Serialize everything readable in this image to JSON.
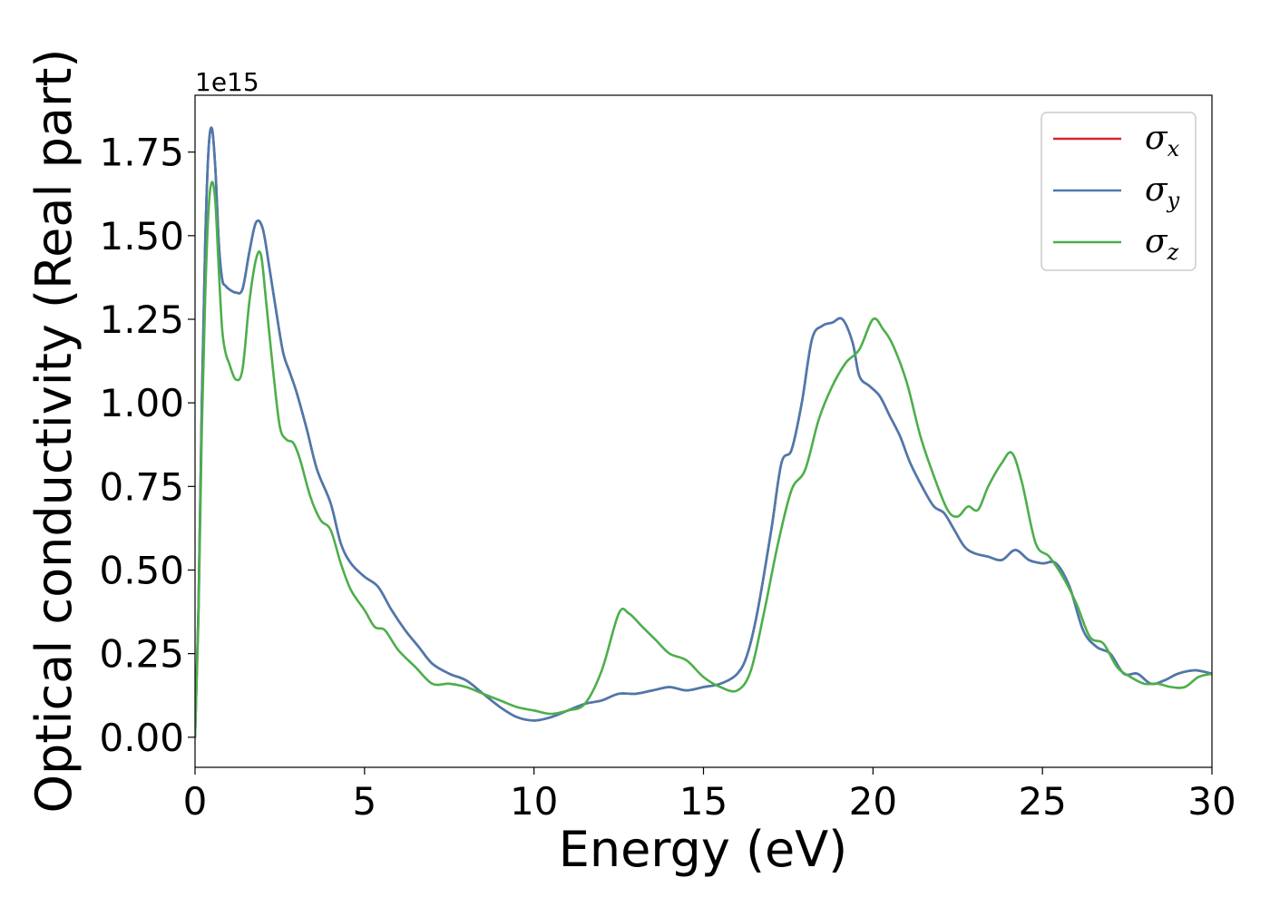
{
  "chart_data": {
    "type": "line",
    "title": "",
    "xlabel": "Energy (eV)",
    "ylabel": "Optical conductivity (Real part)",
    "y_offset_text": "1e15",
    "xlim": [
      0,
      30
    ],
    "ylim": [
      -0.09,
      1.92
    ],
    "x_ticks": [
      0,
      5,
      10,
      15,
      20,
      25,
      30
    ],
    "x_tick_labels": [
      "0",
      "5",
      "10",
      "15",
      "20",
      "25",
      "30"
    ],
    "y_ticks": [
      0,
      0.25,
      0.5,
      0.75,
      1.0,
      1.25,
      1.5,
      1.75
    ],
    "y_tick_labels": [
      "0.00",
      "0.25",
      "0.50",
      "0.75",
      "1.00",
      "1.25",
      "1.50",
      "1.75"
    ],
    "grid": false,
    "legend_position": "top-right",
    "series": [
      {
        "name": "σx",
        "legend_base": "σ",
        "legend_sub": "x",
        "color": "#d62728",
        "x": [
          0,
          0.1,
          0.2,
          0.3,
          0.4,
          0.5,
          0.6,
          0.7,
          0.8,
          0.9,
          1.0,
          1.2,
          1.4,
          1.6,
          1.8,
          2.0,
          2.2,
          2.4,
          2.6,
          2.8,
          3.0,
          3.3,
          3.6,
          4.0,
          4.3,
          4.6,
          5.0,
          5.4,
          5.8,
          6.2,
          6.6,
          7.0,
          7.5,
          8.0,
          8.5,
          9.0,
          9.5,
          10.0,
          10.5,
          11.0,
          11.5,
          12.0,
          12.5,
          13.0,
          13.5,
          14.0,
          14.5,
          15.0,
          15.5,
          16.0,
          16.3,
          16.6,
          17.0,
          17.3,
          17.6,
          17.9,
          18.2,
          18.5,
          18.8,
          19.1,
          19.4,
          19.6,
          19.9,
          20.2,
          20.5,
          20.8,
          21.1,
          21.5,
          21.8,
          22.1,
          22.4,
          22.7,
          23.0,
          23.4,
          23.8,
          24.2,
          24.6,
          25.0,
          25.4,
          25.8,
          26.2,
          26.6,
          27.0,
          27.4,
          27.8,
          28.2,
          28.6,
          29.0,
          29.5,
          30.0
        ],
        "y": [
          0.0,
          0.38,
          1.0,
          1.48,
          1.76,
          1.82,
          1.7,
          1.48,
          1.37,
          1.35,
          1.34,
          1.33,
          1.34,
          1.45,
          1.54,
          1.52,
          1.4,
          1.27,
          1.15,
          1.09,
          1.03,
          0.92,
          0.8,
          0.7,
          0.58,
          0.52,
          0.48,
          0.45,
          0.38,
          0.32,
          0.27,
          0.22,
          0.19,
          0.17,
          0.13,
          0.09,
          0.06,
          0.05,
          0.06,
          0.08,
          0.1,
          0.11,
          0.13,
          0.13,
          0.14,
          0.15,
          0.14,
          0.15,
          0.16,
          0.19,
          0.25,
          0.38,
          0.62,
          0.82,
          0.86,
          1.0,
          1.19,
          1.23,
          1.24,
          1.25,
          1.18,
          1.08,
          1.05,
          1.02,
          0.96,
          0.9,
          0.82,
          0.74,
          0.69,
          0.67,
          0.62,
          0.57,
          0.55,
          0.54,
          0.53,
          0.56,
          0.53,
          0.52,
          0.52,
          0.45,
          0.32,
          0.27,
          0.25,
          0.19,
          0.19,
          0.16,
          0.17,
          0.19,
          0.2,
          0.19
        ]
      },
      {
        "name": "σy",
        "legend_base": "σ",
        "legend_sub": "y",
        "color": "#4a7aaf",
        "x": [
          0,
          0.1,
          0.2,
          0.3,
          0.4,
          0.5,
          0.6,
          0.7,
          0.8,
          0.9,
          1.0,
          1.2,
          1.4,
          1.6,
          1.8,
          2.0,
          2.2,
          2.4,
          2.6,
          2.8,
          3.0,
          3.3,
          3.6,
          4.0,
          4.3,
          4.6,
          5.0,
          5.4,
          5.8,
          6.2,
          6.6,
          7.0,
          7.5,
          8.0,
          8.5,
          9.0,
          9.5,
          10.0,
          10.5,
          11.0,
          11.5,
          12.0,
          12.5,
          13.0,
          13.5,
          14.0,
          14.5,
          15.0,
          15.5,
          16.0,
          16.3,
          16.6,
          17.0,
          17.3,
          17.6,
          17.9,
          18.2,
          18.5,
          18.8,
          19.1,
          19.4,
          19.6,
          19.9,
          20.2,
          20.5,
          20.8,
          21.1,
          21.5,
          21.8,
          22.1,
          22.4,
          22.7,
          23.0,
          23.4,
          23.8,
          24.2,
          24.6,
          25.0,
          25.4,
          25.8,
          26.2,
          26.6,
          27.0,
          27.4,
          27.8,
          28.2,
          28.6,
          29.0,
          29.5,
          30.0
        ],
        "y": [
          0.0,
          0.38,
          1.0,
          1.48,
          1.76,
          1.82,
          1.7,
          1.48,
          1.37,
          1.35,
          1.34,
          1.33,
          1.34,
          1.45,
          1.54,
          1.52,
          1.4,
          1.27,
          1.15,
          1.09,
          1.03,
          0.92,
          0.8,
          0.7,
          0.58,
          0.52,
          0.48,
          0.45,
          0.38,
          0.32,
          0.27,
          0.22,
          0.19,
          0.17,
          0.13,
          0.09,
          0.06,
          0.05,
          0.06,
          0.08,
          0.1,
          0.11,
          0.13,
          0.13,
          0.14,
          0.15,
          0.14,
          0.15,
          0.16,
          0.19,
          0.25,
          0.38,
          0.62,
          0.82,
          0.86,
          1.0,
          1.19,
          1.23,
          1.24,
          1.25,
          1.18,
          1.08,
          1.05,
          1.02,
          0.96,
          0.9,
          0.82,
          0.74,
          0.69,
          0.67,
          0.62,
          0.57,
          0.55,
          0.54,
          0.53,
          0.56,
          0.53,
          0.52,
          0.52,
          0.45,
          0.32,
          0.27,
          0.25,
          0.19,
          0.19,
          0.16,
          0.17,
          0.19,
          0.2,
          0.19
        ]
      },
      {
        "name": "σz",
        "legend_base": "σ",
        "legend_sub": "z",
        "color": "#4daf4a",
        "x": [
          0,
          0.1,
          0.2,
          0.3,
          0.4,
          0.5,
          0.6,
          0.7,
          0.8,
          0.9,
          1.0,
          1.2,
          1.4,
          1.6,
          1.8,
          1.95,
          2.1,
          2.3,
          2.5,
          2.7,
          2.9,
          3.1,
          3.4,
          3.7,
          4.0,
          4.3,
          4.6,
          5.0,
          5.3,
          5.6,
          6.0,
          6.5,
          7.0,
          7.5,
          8.0,
          8.5,
          9.0,
          9.5,
          10.0,
          10.5,
          11.0,
          11.5,
          12.0,
          12.5,
          12.8,
          13.2,
          13.6,
          14.0,
          14.5,
          15.0,
          15.5,
          16.0,
          16.4,
          16.8,
          17.2,
          17.6,
          18.0,
          18.4,
          18.8,
          19.2,
          19.6,
          20.0,
          20.3,
          20.6,
          21.0,
          21.4,
          21.8,
          22.2,
          22.5,
          22.8,
          23.1,
          23.4,
          23.8,
          24.1,
          24.4,
          24.8,
          25.2,
          25.6,
          26.0,
          26.4,
          26.8,
          27.2,
          27.6,
          28.0,
          28.4,
          28.8,
          29.2,
          29.6,
          30.0
        ],
        "y": [
          0.0,
          0.35,
          0.92,
          1.32,
          1.58,
          1.66,
          1.6,
          1.4,
          1.22,
          1.15,
          1.12,
          1.07,
          1.1,
          1.3,
          1.43,
          1.44,
          1.3,
          1.1,
          0.93,
          0.89,
          0.88,
          0.83,
          0.72,
          0.65,
          0.62,
          0.52,
          0.44,
          0.38,
          0.33,
          0.32,
          0.26,
          0.21,
          0.16,
          0.16,
          0.15,
          0.13,
          0.11,
          0.09,
          0.08,
          0.07,
          0.08,
          0.1,
          0.2,
          0.37,
          0.37,
          0.33,
          0.29,
          0.25,
          0.23,
          0.18,
          0.15,
          0.14,
          0.2,
          0.38,
          0.58,
          0.74,
          0.8,
          0.95,
          1.05,
          1.12,
          1.16,
          1.25,
          1.22,
          1.17,
          1.06,
          0.9,
          0.78,
          0.68,
          0.66,
          0.69,
          0.68,
          0.75,
          0.82,
          0.85,
          0.76,
          0.58,
          0.54,
          0.48,
          0.4,
          0.3,
          0.28,
          0.21,
          0.18,
          0.16,
          0.16,
          0.15,
          0.15,
          0.18,
          0.19
        ]
      }
    ]
  }
}
